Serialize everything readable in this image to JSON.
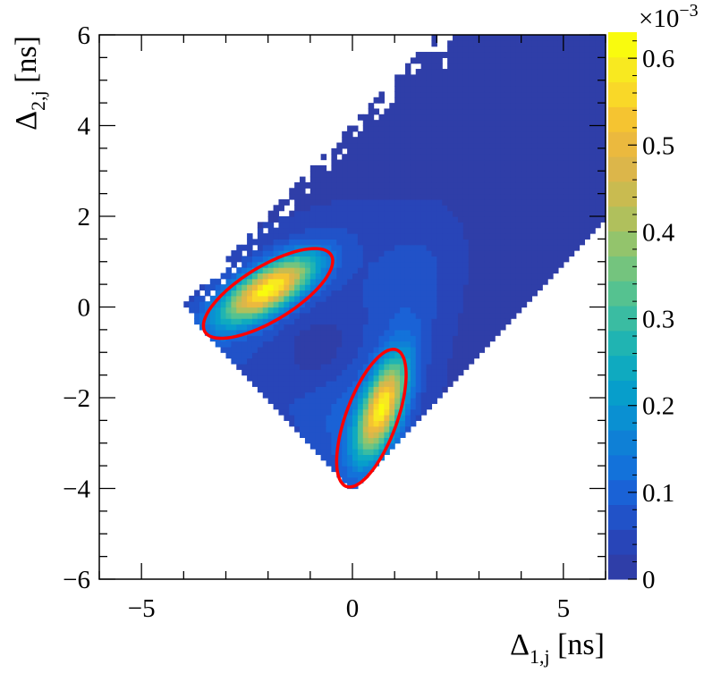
{
  "chart_data": {
    "type": "heatmap",
    "xlabel": "Δ",
    "xlabel_sub": "1,j",
    "xlabel_unit": " [ns]",
    "ylabel": "Δ",
    "ylabel_sub": "2,j",
    "ylabel_unit": " [ns]",
    "xlim": [
      -6,
      6
    ],
    "ylim": [
      -6,
      6
    ],
    "x_ticks": [
      -5,
      0,
      5
    ],
    "x_tick_labels": [
      "−5",
      "0",
      "5"
    ],
    "y_ticks": [
      -6,
      -4,
      -2,
      0,
      2,
      4,
      6
    ],
    "y_tick_labels": [
      "−6",
      "−4",
      "−2",
      "0",
      "2",
      "4",
      "6"
    ],
    "colorbar": {
      "range": [
        0,
        0.00063
      ],
      "exponent_label": "×10",
      "exponent_power": "−3",
      "ticks": [
        0,
        0.1,
        0.2,
        0.3,
        0.4,
        0.5,
        0.6
      ],
      "tick_labels": [
        "0",
        "0.1",
        "0.2",
        "0.3",
        "0.4",
        "0.5",
        "0.6"
      ],
      "colors": [
        "#2f3ea8",
        "#2845b8",
        "#2152c8",
        "#1a62d6",
        "#1372da",
        "#0f80d6",
        "#0a90d2",
        "#079ecb",
        "#0faac0",
        "#20b4b2",
        "#3abca2",
        "#55c290",
        "#74c47e",
        "#93c46c",
        "#b0c05c",
        "#c9bb50",
        "#dcb64a",
        "#ebb93e",
        "#f5c431",
        "#f9d828",
        "#f8e920",
        "#f9fb0e"
      ]
    },
    "grid": false,
    "ellipses": [
      {
        "center": [
          -2.0,
          0.3
        ],
        "semi_major": 1.72,
        "semi_minor": 0.61,
        "angle_deg": 29,
        "color": "#ff0000"
      },
      {
        "center": [
          0.45,
          -2.45
        ],
        "semi_major": 1.62,
        "semi_minor": 0.6,
        "angle_deg": 68,
        "color": "#ff0000"
      }
    ],
    "data_region": {
      "description_note": "",
      "lobes": [
        {
          "center": [
            -2.0,
            0.4
          ],
          "peak": 0.00055
        },
        {
          "center": [
            0.7,
            -2.2
          ],
          "peak": 0.00052
        }
      ]
    }
  }
}
